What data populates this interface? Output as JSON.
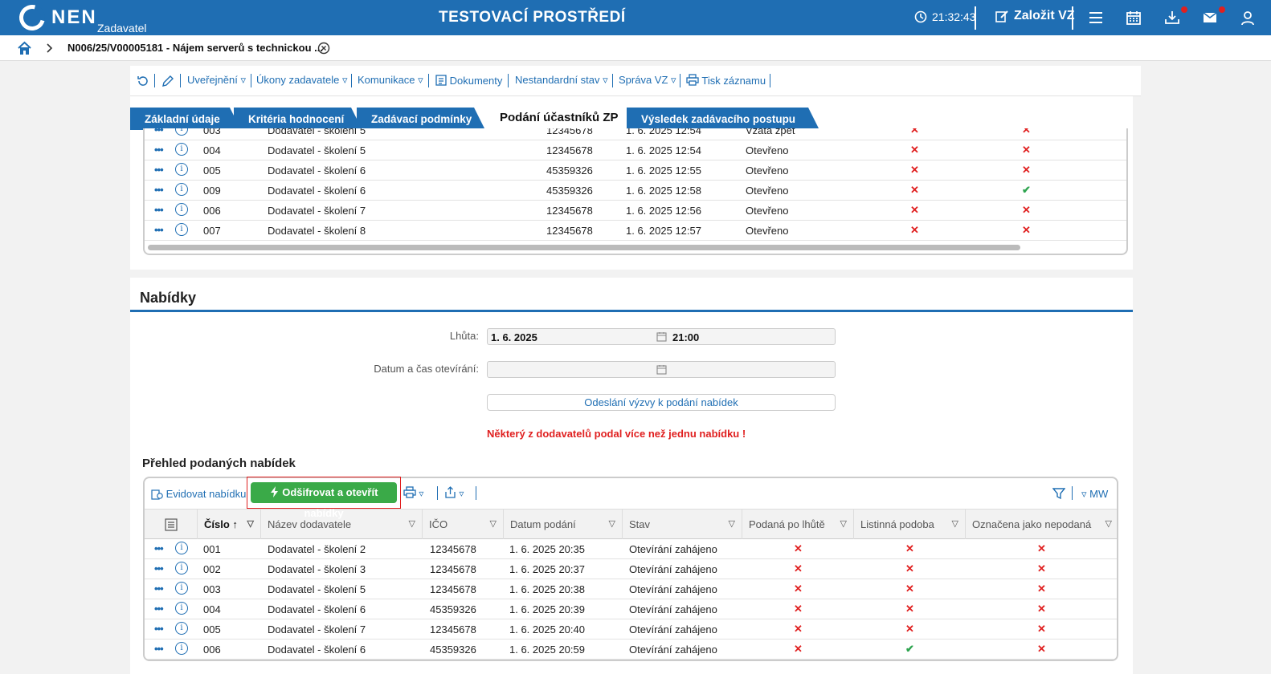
{
  "header": {
    "logo": "NEN",
    "logo_sub": "Zadavatel",
    "env_title": "TESTOVACÍ PROSTŘEDÍ",
    "clock": "21:32:43",
    "create_label": "Založit VZ"
  },
  "breadcrumb": {
    "text": "N006/25/V00005181 - Nájem serverů s technickou ..."
  },
  "toolbar": {
    "items": [
      "Uveřejnění",
      "Úkony zadavatele",
      "Komunikace",
      "Dokumenty",
      "Nestandardní stav",
      "Správa VZ",
      "Tisk záznamu"
    ]
  },
  "tabs": [
    "Základní údaje",
    "Kritéria hodnocení",
    "Zadávací podmínky",
    "Podání účastníků ZP",
    "Výsledek zadávacího postupu"
  ],
  "upper_rows": [
    {
      "num": "003",
      "name": "Dodavatel - školení 5",
      "ico": "12345678",
      "date": "1. 6. 2025 12:54",
      "state": "Vzata zpět",
      "c1": "x",
      "c2": "x"
    },
    {
      "num": "004",
      "name": "Dodavatel - školení 5",
      "ico": "12345678",
      "date": "1. 6. 2025 12:54",
      "state": "Otevřeno",
      "c1": "x",
      "c2": "x"
    },
    {
      "num": "005",
      "name": "Dodavatel - školení 6",
      "ico": "45359326",
      "date": "1. 6. 2025 12:55",
      "state": "Otevřeno",
      "c1": "x",
      "c2": "x"
    },
    {
      "num": "009",
      "name": "Dodavatel - školení 6",
      "ico": "45359326",
      "date": "1. 6. 2025 12:58",
      "state": "Otevřeno",
      "c1": "x",
      "c2": "ok"
    },
    {
      "num": "006",
      "name": "Dodavatel - školení 7",
      "ico": "12345678",
      "date": "1. 6. 2025 12:56",
      "state": "Otevřeno",
      "c1": "x",
      "c2": "x"
    },
    {
      "num": "007",
      "name": "Dodavatel - školení 8",
      "ico": "12345678",
      "date": "1. 6. 2025 12:57",
      "state": "Otevřeno",
      "c1": "x",
      "c2": "x"
    }
  ],
  "offers": {
    "title": "Nabídky",
    "deadline_label": "Lhůta:",
    "deadline_date": "1. 6. 2025",
    "deadline_time": "21:00",
    "opening_label": "Datum a čas otevírání:",
    "send_button": "Odeslání výzvy k podání nabídek",
    "warning": "Některý z dodavatelů podal více než jednu nabídku !",
    "overview_title": "Přehled podaných nabídek",
    "register_button": "Evidovat nabídku",
    "decrypt_button": "Odšifrovat a otevřít nabídky",
    "mw_label": "MW",
    "columns": [
      "Číslo",
      "Název dodavatele",
      "IČO",
      "Datum podání",
      "Stav",
      "Podaná po lhůtě",
      "Listinná podoba",
      "Označena jako nepodaná"
    ],
    "rows": [
      {
        "num": "001",
        "name": "Dodavatel - školení 2",
        "ico": "12345678",
        "date": "1. 6. 2025 20:35",
        "state": "Otevírání zahájeno",
        "late": "x",
        "paper": "x",
        "notsub": "x"
      },
      {
        "num": "002",
        "name": "Dodavatel - školení 3",
        "ico": "12345678",
        "date": "1. 6. 2025 20:37",
        "state": "Otevírání zahájeno",
        "late": "x",
        "paper": "x",
        "notsub": "x"
      },
      {
        "num": "003",
        "name": "Dodavatel - školení 5",
        "ico": "12345678",
        "date": "1. 6. 2025 20:38",
        "state": "Otevírání zahájeno",
        "late": "x",
        "paper": "x",
        "notsub": "x"
      },
      {
        "num": "004",
        "name": "Dodavatel - školení 6",
        "ico": "45359326",
        "date": "1. 6. 2025 20:39",
        "state": "Otevírání zahájeno",
        "late": "x",
        "paper": "x",
        "notsub": "x"
      },
      {
        "num": "005",
        "name": "Dodavatel - školení 7",
        "ico": "12345678",
        "date": "1. 6. 2025 20:40",
        "state": "Otevírání zahájeno",
        "late": "x",
        "paper": "x",
        "notsub": "x"
      },
      {
        "num": "006",
        "name": "Dodavatel - školení 6",
        "ico": "45359326",
        "date": "1. 6. 2025 20:59",
        "state": "Otevírání zahájeno",
        "late": "x",
        "paper": "ok",
        "notsub": "x"
      }
    ]
  }
}
